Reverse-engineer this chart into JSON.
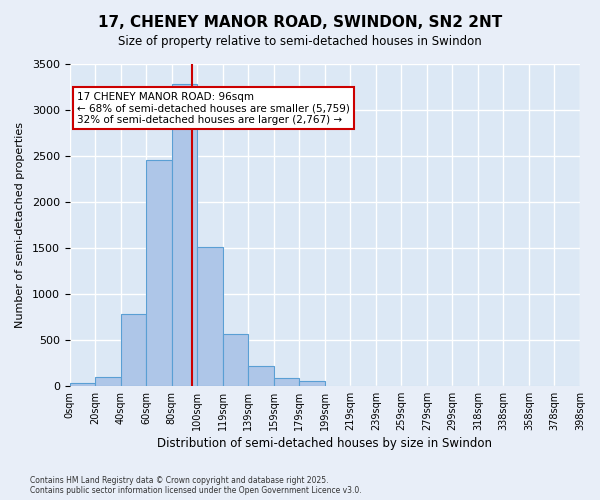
{
  "title_line1": "17, CHENEY MANOR ROAD, SWINDON, SN2 2NT",
  "title_line2": "Size of property relative to semi-detached houses in Swindon",
  "xlabel": "Distribution of semi-detached houses by size in Swindon",
  "ylabel": "Number of semi-detached properties",
  "property_label": "17 CHENEY MANOR ROAD: 96sqm",
  "pct_smaller": 68,
  "pct_larger": 32,
  "count_smaller": 5759,
  "count_larger": 2767,
  "bin_labels": [
    "0sqm",
    "20sqm",
    "40sqm",
    "60sqm",
    "80sqm",
    "100sqm",
    "119sqm",
    "139sqm",
    "159sqm",
    "179sqm",
    "199sqm",
    "219sqm",
    "239sqm",
    "259sqm",
    "279sqm",
    "299sqm",
    "318sqm",
    "338sqm",
    "358sqm",
    "378sqm",
    "398sqm"
  ],
  "bar_values": [
    30,
    100,
    780,
    2460,
    3280,
    1510,
    560,
    220,
    80,
    50,
    0,
    0,
    0,
    0,
    0,
    0,
    0,
    0,
    0,
    0
  ],
  "bar_color": "#aec6e8",
  "bar_edge_color": "#5a9fd4",
  "vline_color": "#cc0000",
  "vline_x": 4.8,
  "annotation_box_color": "#cc0000",
  "background_color": "#e8eef8",
  "plot_bg_color": "#dce8f5",
  "grid_color": "#ffffff",
  "ylim": [
    0,
    3500
  ],
  "yticks": [
    0,
    500,
    1000,
    1500,
    2000,
    2500,
    3000,
    3500
  ],
  "footnote": "Contains HM Land Registry data © Crown copyright and database right 2025.\nContains public sector information licensed under the Open Government Licence v3.0."
}
